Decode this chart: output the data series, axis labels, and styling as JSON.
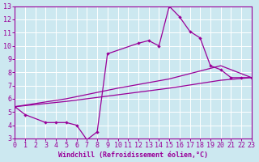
{
  "xlabel": "Windchill (Refroidissement éolien,°C)",
  "xlim": [
    0,
    23
  ],
  "ylim": [
    3,
    13
  ],
  "xticks": [
    0,
    1,
    2,
    3,
    4,
    5,
    6,
    7,
    8,
    9,
    10,
    11,
    12,
    13,
    14,
    15,
    16,
    17,
    18,
    19,
    20,
    21,
    22,
    23
  ],
  "yticks": [
    3,
    4,
    5,
    6,
    7,
    8,
    9,
    10,
    11,
    12,
    13
  ],
  "color": "#990099",
  "bg_color": "#cce8f0",
  "grid_color": "#ffffff",
  "line1_x": [
    0,
    1,
    3,
    4,
    5,
    6,
    7,
    8,
    9,
    12,
    13,
    14,
    15,
    16,
    17,
    18,
    19,
    20,
    21,
    22,
    23
  ],
  "line1_y": [
    5.4,
    4.8,
    4.2,
    4.2,
    4.2,
    4.0,
    2.9,
    3.5,
    9.4,
    10.2,
    10.4,
    10.0,
    13.0,
    12.2,
    11.1,
    10.6,
    8.5,
    8.2,
    7.6,
    7.6,
    7.6
  ],
  "line2_x": [
    0,
    5,
    10,
    15,
    20,
    23
  ],
  "line2_y": [
    5.4,
    5.8,
    6.3,
    6.8,
    7.4,
    7.6
  ],
  "line3_x": [
    0,
    5,
    10,
    15,
    20,
    23
  ],
  "line3_y": [
    5.4,
    6.0,
    6.8,
    7.5,
    8.5,
    7.6
  ],
  "font_size": 6,
  "tick_font_size": 6
}
